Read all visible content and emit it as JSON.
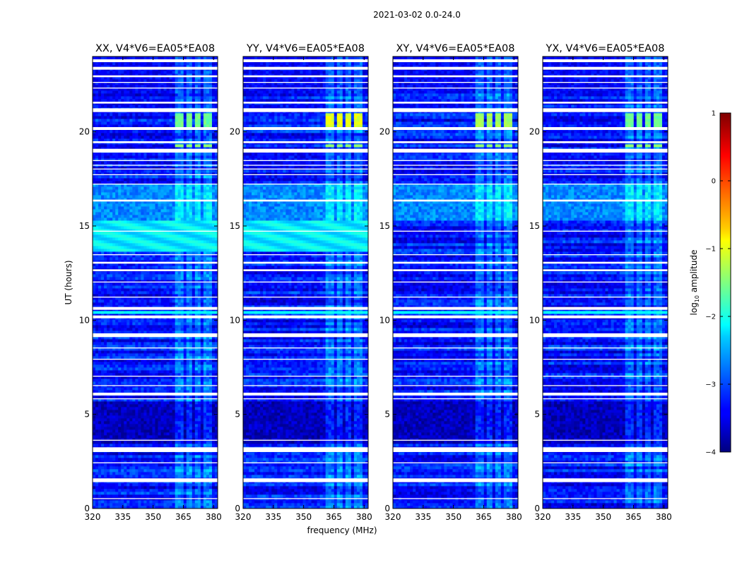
{
  "chart_data": {
    "type": "heatmap",
    "suptitle": "2021-03-02 0.0-24.0",
    "xlabel": "frequency (MHz)",
    "ylabel": "UT (hours)",
    "xlim": [
      320,
      382
    ],
    "ylim": [
      0,
      24
    ],
    "x_ticks": [
      320,
      335,
      350,
      365,
      380
    ],
    "x_tick_labels": [
      "320",
      "335",
      "350",
      "365",
      "380"
    ],
    "y_ticks": [
      0,
      5,
      10,
      15,
      20
    ],
    "y_tick_labels": [
      "0",
      "5",
      "10",
      "15",
      "20"
    ],
    "colormap": "jet",
    "colorbar": {
      "label": "log10 amplitude",
      "label_main": "log",
      "label_sub": "10",
      "label_rest": " amplitude",
      "range": [
        -4,
        1
      ],
      "ticks": [
        -4,
        -3,
        -2,
        -1,
        0,
        1
      ],
      "tick_labels": [
        "−4",
        "−3",
        "−2",
        "−1",
        "0",
        "1"
      ]
    },
    "panels": [
      {
        "title": "XX, V4*V6=EA05*EA08",
        "broadband_15h": true,
        "block_20_21h_level": -1.6
      },
      {
        "title": "YY, V4*V6=EA05*EA08",
        "broadband_15h": true,
        "block_20_21h_level": -1.0
      },
      {
        "title": "XY, V4*V6=EA05*EA08",
        "broadband_15h": false,
        "block_20_21h_level": -1.3
      },
      {
        "title": "YX, V4*V6=EA05*EA08",
        "broadband_15h": false,
        "block_20_21h_level": -1.6
      }
    ],
    "background_level_range": [
      -3.8,
      -2.6
    ],
    "rfi_band_mhz": [
      361,
      381
    ],
    "rfi_sub_bands_mhz": [
      [
        361,
        365
      ],
      [
        366,
        369.5
      ],
      [
        370.5,
        374
      ],
      [
        375.5,
        379
      ]
    ],
    "flagged_ut_hours": [
      [
        1.4,
        1.6
      ],
      [
        3.0,
        3.25
      ],
      [
        6.0,
        6.15
      ],
      [
        9.1,
        9.3
      ],
      [
        10.1,
        10.25
      ],
      [
        10.55,
        10.7
      ],
      [
        16.3,
        16.4
      ],
      [
        18.9,
        19.1
      ],
      [
        19.4,
        19.5
      ],
      [
        20.1,
        20.25
      ],
      [
        21.05,
        21.25
      ],
      [
        21.5,
        21.6
      ],
      [
        22.9,
        23.0
      ],
      [
        23.3,
        23.45
      ],
      [
        23.7,
        23.85
      ],
      [
        0.5,
        0.55
      ],
      [
        2.4,
        2.45
      ],
      [
        3.6,
        3.65
      ],
      [
        5.8,
        5.85
      ],
      [
        6.5,
        6.55
      ],
      [
        7.0,
        7.05
      ],
      [
        7.9,
        7.95
      ],
      [
        8.5,
        8.55
      ],
      [
        11.2,
        11.25
      ],
      [
        12.0,
        12.05
      ],
      [
        12.6,
        12.7
      ],
      [
        13.0,
        13.1
      ],
      [
        13.45,
        13.5
      ],
      [
        14.7,
        14.75
      ],
      [
        17.2,
        17.25
      ],
      [
        17.7,
        17.75
      ],
      [
        18.0,
        18.05
      ],
      [
        18.2,
        18.25
      ],
      [
        18.45,
        18.5
      ],
      [
        22.3,
        22.35
      ],
      [
        22.6,
        22.65
      ]
    ]
  }
}
